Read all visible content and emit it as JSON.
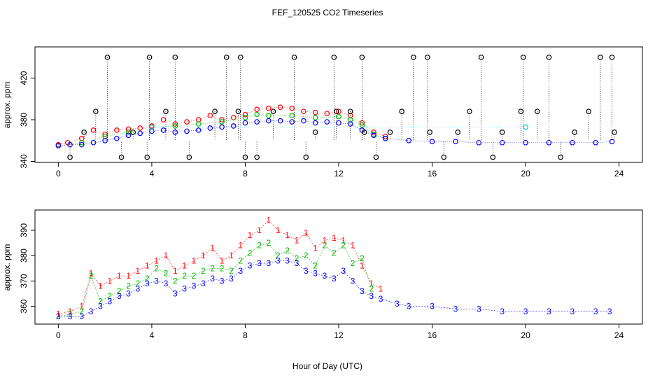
{
  "chart_data": [
    {
      "type": "scatter",
      "title": "FEF_120525  CO2 Timeseries",
      "xlabel": "",
      "ylabel": "approx. ppm",
      "xlim": [
        -1,
        25
      ],
      "ylim": [
        339,
        450
      ],
      "xticks": [
        0,
        4,
        8,
        12,
        16,
        20,
        24
      ],
      "yticks": [
        340,
        380,
        420
      ],
      "xtick_labels": [
        "0",
        "4",
        "8",
        "12",
        "16",
        "20",
        "24"
      ],
      "ytick_labels": [
        "340",
        "380",
        "420"
      ],
      "series": [
        {
          "name": "red",
          "color": "#ff0000",
          "x": [
            0,
            0.4,
            1.0,
            1.5,
            2.0,
            2.5,
            3.0,
            3.5,
            4.0,
            4.5,
            5.0,
            5.5,
            6.0,
            6.5,
            7.0,
            7.5,
            8.0,
            8.5,
            9.0,
            9.5,
            10.0,
            10.5,
            11.0,
            11.5,
            12.0,
            12.5,
            13.0,
            13.5,
            14.0
          ],
          "y": [
            356,
            358,
            362,
            370,
            366,
            370,
            371,
            372,
            374,
            380,
            376,
            378,
            380,
            384,
            380,
            382,
            385,
            390,
            391,
            392,
            391,
            388,
            387,
            386,
            388,
            384,
            377,
            368,
            364
          ]
        },
        {
          "name": "green",
          "color": "#00bb00",
          "x": [
            0,
            1.0,
            2.0,
            3.0,
            4.0,
            5.0,
            6.0,
            7.0,
            8.0,
            8.5,
            9.0,
            10.0,
            11.0,
            12.0,
            12.5,
            13.0,
            13.5,
            14.0
          ],
          "y": [
            355,
            358,
            364,
            368,
            373,
            374,
            376,
            378,
            382,
            385,
            384,
            384,
            382,
            383,
            380,
            375,
            366,
            362
          ]
        },
        {
          "name": "blue",
          "color": "#0000ff",
          "x": [
            0,
            0.5,
            1.0,
            1.5,
            2.0,
            2.5,
            3.0,
            3.5,
            4.0,
            4.5,
            5.0,
            5.5,
            6.0,
            6.5,
            7.0,
            7.5,
            8.0,
            8.5,
            9.0,
            9.5,
            10.0,
            10.5,
            11.0,
            11.5,
            12.0,
            12.5,
            13.0,
            13.5,
            14.0,
            15.0,
            16.0,
            17.0,
            18.0,
            19.0,
            20.0,
            21.0,
            22.0,
            23.0,
            23.7
          ],
          "y": [
            355,
            356,
            356,
            358,
            360,
            362,
            365,
            367,
            369,
            370,
            368,
            369,
            370,
            372,
            373,
            374,
            377,
            378,
            379,
            379,
            378,
            379,
            377,
            378,
            377,
            376,
            370,
            365,
            362,
            360,
            359,
            359,
            358,
            358,
            358,
            358,
            358,
            358,
            359
          ]
        },
        {
          "name": "black",
          "color": "#000000",
          "x": [
            0.5,
            1.1,
            1.6,
            2.1,
            2.7,
            3.2,
            3.8,
            3.9,
            4.6,
            5.0,
            5.6,
            6.7,
            7.2,
            7.7,
            7.8,
            8.0,
            8.5,
            9.2,
            10.1,
            10.6,
            11.0,
            11.8,
            11.9,
            12.5,
            13.0,
            13.1,
            13.6,
            14.2,
            14.7,
            15.2,
            15.8,
            15.9,
            16.5,
            17.1,
            17.6,
            18.1,
            18.6,
            19.0,
            19.8,
            19.9,
            20.5,
            21.0,
            21.5,
            22.1,
            22.7,
            23.2,
            23.7,
            23.8
          ],
          "y": [
            344,
            368,
            388,
            440,
            344,
            368,
            344,
            440,
            388,
            440,
            344,
            388,
            440,
            388,
            440,
            344,
            344,
            388,
            440,
            344,
            368,
            440,
            388,
            388,
            440,
            368,
            344,
            368,
            388,
            440,
            440,
            368,
            344,
            368,
            388,
            440,
            344,
            368,
            388,
            440,
            388,
            440,
            344,
            368,
            388,
            440,
            440,
            368
          ]
        },
        {
          "name": "cyan",
          "color": "#00cccc",
          "x": [
            4.0,
            20.0
          ],
          "y": [
            373,
            373
          ]
        }
      ]
    },
    {
      "type": "scatter",
      "title": "",
      "xlabel": "Hour of Day (UTC)",
      "ylabel": "approx. ppm",
      "xlim": [
        -1,
        25
      ],
      "ylim": [
        353,
        398
      ],
      "xticks": [
        0,
        4,
        8,
        12,
        16,
        20,
        24
      ],
      "yticks": [
        360,
        370,
        380,
        390
      ],
      "xtick_labels": [
        "0",
        "4",
        "8",
        "12",
        "16",
        "20",
        "24"
      ],
      "ytick_labels": [
        "360",
        "370",
        "380",
        "390"
      ],
      "series": [
        {
          "name": "1",
          "marker": "1",
          "color": "#ff0000",
          "x": [
            0,
            0.5,
            1.0,
            1.4,
            1.8,
            2.2,
            2.6,
            3.0,
            3.4,
            3.8,
            4.2,
            4.6,
            5.0,
            5.4,
            5.8,
            6.2,
            6.6,
            7.0,
            7.4,
            7.8,
            8.2,
            8.6,
            9.0,
            9.4,
            9.8,
            10.2,
            10.6,
            11.0,
            11.4,
            11.8,
            12.2,
            12.6,
            13.0,
            13.4,
            13.8
          ],
          "y": [
            357,
            358,
            360,
            373,
            368,
            370,
            372,
            372,
            374,
            376,
            378,
            380,
            374,
            376,
            378,
            380,
            383,
            378,
            380,
            384,
            388,
            390,
            394,
            390,
            388,
            386,
            389,
            383,
            386,
            387,
            386,
            384,
            376,
            369,
            367
          ]
        },
        {
          "name": "2",
          "marker": "2",
          "color": "#00bb00",
          "x": [
            0,
            0.5,
            1.0,
            1.4,
            1.8,
            2.2,
            2.6,
            3.0,
            3.4,
            3.8,
            4.2,
            4.6,
            5.0,
            5.4,
            5.8,
            6.2,
            6.6,
            7.0,
            7.4,
            7.8,
            8.2,
            8.6,
            9.0,
            9.4,
            9.8,
            10.2,
            10.6,
            11.0,
            11.4,
            11.8,
            12.2,
            12.6,
            13.0,
            13.4
          ],
          "y": [
            356,
            357,
            358,
            372,
            362,
            364,
            366,
            368,
            369,
            371,
            375,
            373,
            370,
            372,
            372,
            374,
            375,
            375,
            374,
            378,
            381,
            384,
            385,
            380,
            382,
            379,
            380,
            376,
            384,
            381,
            384,
            377,
            379,
            367
          ]
        },
        {
          "name": "3",
          "marker": "3",
          "color": "#0000ff",
          "x": [
            0,
            0.5,
            1.0,
            1.4,
            1.8,
            2.2,
            2.6,
            3.0,
            3.4,
            3.8,
            4.2,
            4.6,
            5.0,
            5.4,
            5.8,
            6.2,
            6.6,
            7.0,
            7.4,
            7.8,
            8.2,
            8.6,
            9.0,
            9.4,
            9.8,
            10.2,
            10.6,
            11.0,
            11.4,
            11.8,
            12.2,
            12.6,
            13.0,
            13.4,
            13.8,
            14.5,
            15.0,
            16.0,
            17.0,
            18.0,
            19.0,
            20.0,
            21.0,
            22.0,
            23.0,
            23.6
          ],
          "y": [
            356,
            356,
            356,
            358,
            360,
            362,
            364,
            365,
            367,
            369,
            370,
            369,
            365,
            367,
            368,
            369,
            371,
            370,
            371,
            374,
            376,
            377,
            377,
            378,
            378,
            377,
            374,
            373,
            372,
            371,
            374,
            370,
            366,
            364,
            363,
            361,
            360,
            360,
            359,
            359,
            358,
            358,
            358,
            358,
            358,
            358
          ]
        }
      ]
    }
  ]
}
